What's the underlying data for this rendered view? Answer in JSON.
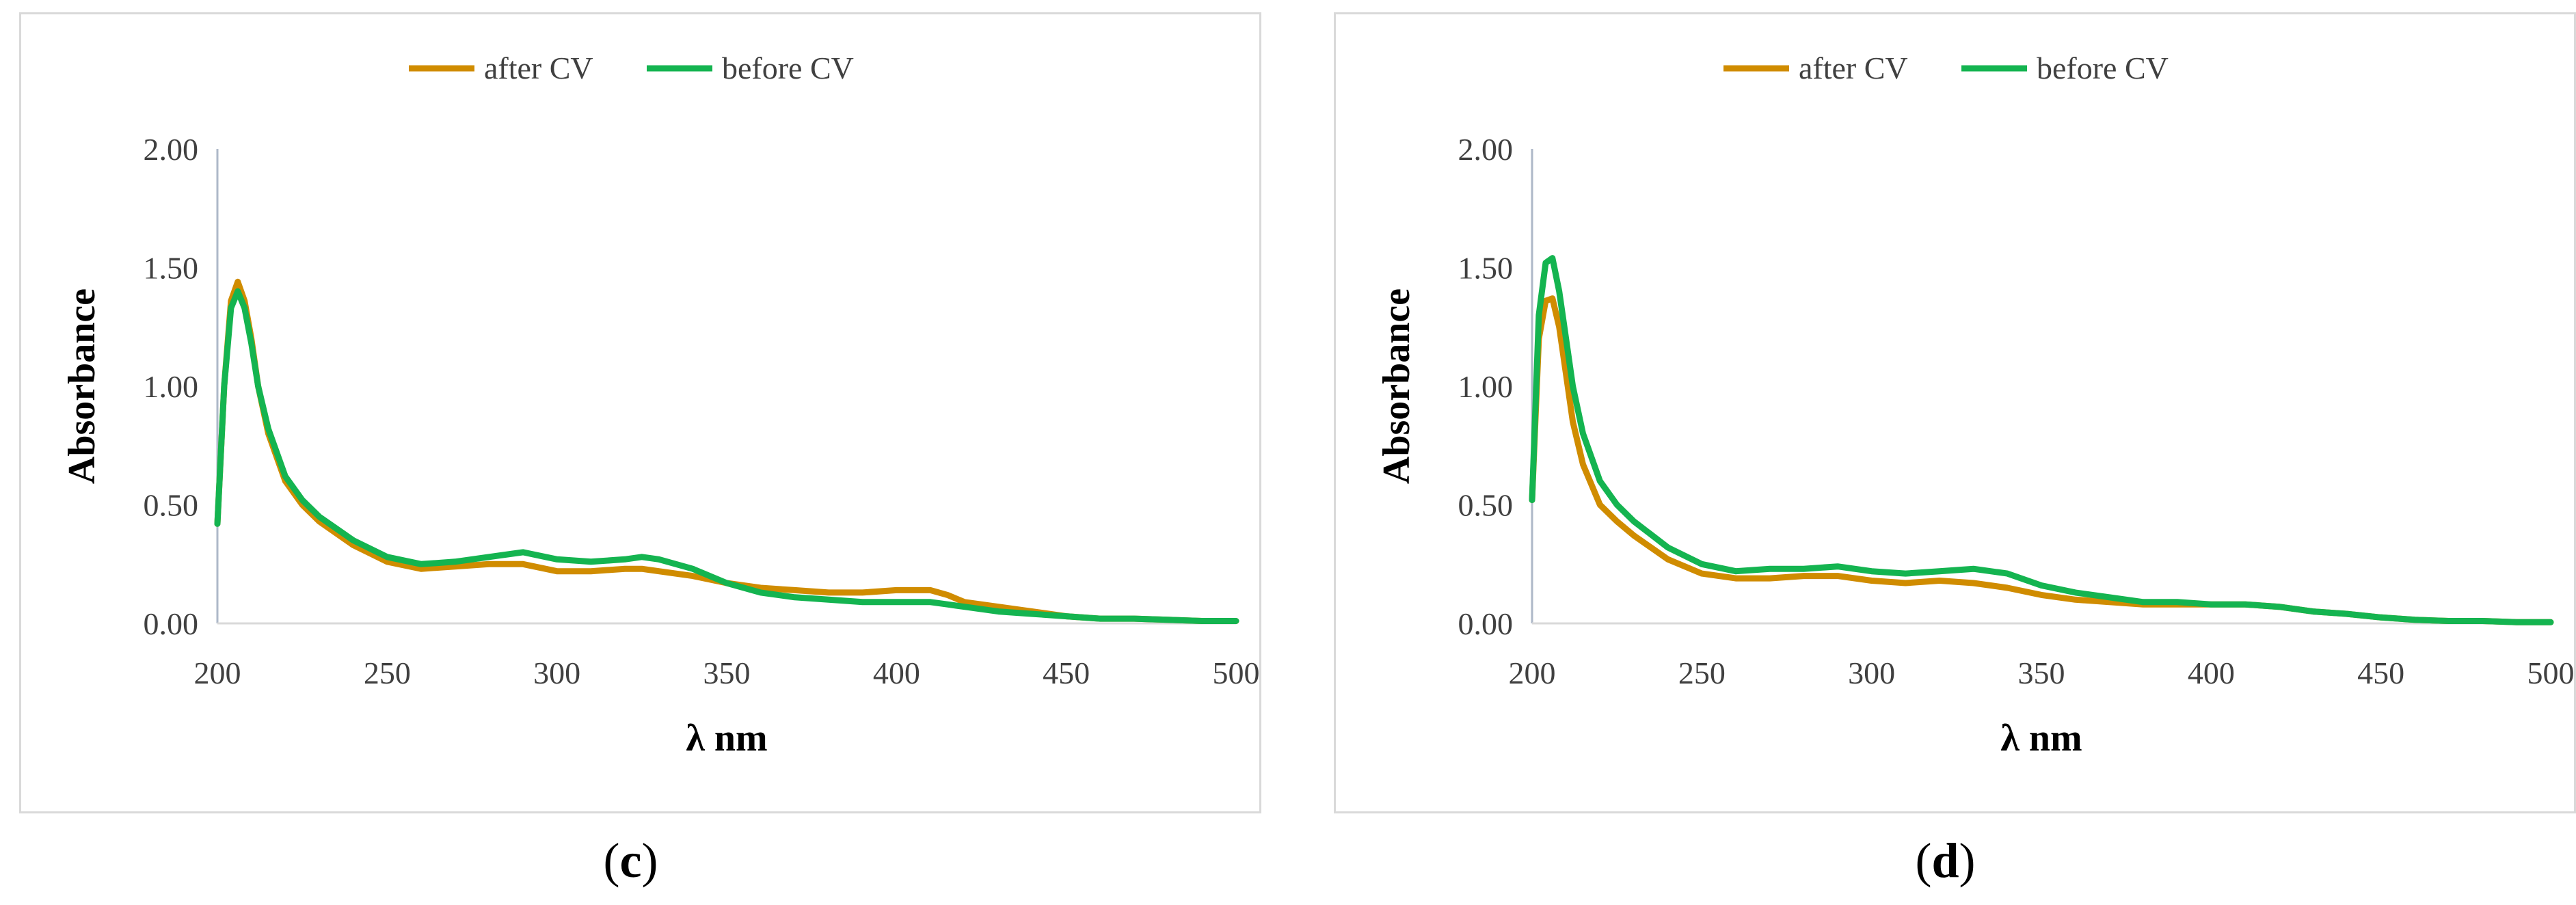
{
  "chart_data": [
    {
      "type": "line",
      "panel_label": "c",
      "title": "",
      "xlabel": "λ nm",
      "ylabel": "Absorbance",
      "xlim": [
        200,
        500
      ],
      "ylim": [
        0,
        2
      ],
      "xticks": [
        200,
        250,
        300,
        350,
        400,
        450,
        500
      ],
      "xtick_labels": [
        "200",
        "250",
        "300",
        "350",
        "400",
        "450",
        "500"
      ],
      "yticks": [
        0,
        0.5,
        1,
        1.5,
        2
      ],
      "ytick_labels": [
        "0.00",
        "0.50",
        "1.00",
        "1.50",
        "2.00"
      ],
      "grid": false,
      "legend_position": "top-center",
      "series": [
        {
          "name": "after CV",
          "color": "#d08c00",
          "x": [
            200,
            202,
            204,
            206,
            208,
            210,
            212,
            215,
            220,
            225,
            230,
            240,
            250,
            260,
            270,
            280,
            290,
            300,
            310,
            320,
            325,
            330,
            340,
            350,
            360,
            370,
            380,
            390,
            400,
            410,
            415,
            420,
            430,
            440,
            450,
            460,
            470,
            480,
            490,
            500
          ],
          "y": [
            0.42,
            1.0,
            1.36,
            1.44,
            1.36,
            1.2,
            1.0,
            0.8,
            0.6,
            0.5,
            0.43,
            0.33,
            0.26,
            0.23,
            0.24,
            0.25,
            0.25,
            0.22,
            0.22,
            0.23,
            0.23,
            0.22,
            0.2,
            0.17,
            0.15,
            0.14,
            0.13,
            0.13,
            0.14,
            0.14,
            0.12,
            0.09,
            0.07,
            0.05,
            0.03,
            0.02,
            0.02,
            0.015,
            0.01,
            0.01
          ]
        },
        {
          "name": "before CV",
          "color": "#14b450",
          "x": [
            200,
            202,
            204,
            206,
            208,
            210,
            212,
            215,
            220,
            225,
            230,
            240,
            250,
            260,
            270,
            280,
            290,
            300,
            310,
            320,
            325,
            330,
            340,
            350,
            360,
            370,
            380,
            390,
            400,
            410,
            415,
            420,
            430,
            440,
            450,
            460,
            470,
            480,
            490,
            500
          ],
          "y": [
            0.42,
            1.0,
            1.33,
            1.4,
            1.33,
            1.18,
            1.0,
            0.82,
            0.62,
            0.52,
            0.45,
            0.35,
            0.28,
            0.25,
            0.26,
            0.28,
            0.3,
            0.27,
            0.26,
            0.27,
            0.28,
            0.27,
            0.23,
            0.17,
            0.13,
            0.11,
            0.1,
            0.09,
            0.09,
            0.09,
            0.08,
            0.07,
            0.05,
            0.04,
            0.03,
            0.02,
            0.02,
            0.015,
            0.01,
            0.01
          ]
        }
      ]
    },
    {
      "type": "line",
      "panel_label": "d",
      "title": "",
      "xlabel": "λ nm",
      "ylabel": "Absorbance",
      "xlim": [
        200,
        500
      ],
      "ylim": [
        0,
        2
      ],
      "xticks": [
        200,
        250,
        300,
        350,
        400,
        450,
        500
      ],
      "xtick_labels": [
        "200",
        "250",
        "300",
        "350",
        "400",
        "450",
        "500"
      ],
      "yticks": [
        0,
        0.5,
        1,
        1.5,
        2
      ],
      "ytick_labels": [
        "0.00",
        "0.50",
        "1.00",
        "1.50",
        "2.00"
      ],
      "grid": false,
      "legend_position": "top-center",
      "series": [
        {
          "name": "after CV",
          "color": "#d08c00",
          "x": [
            200,
            202,
            204,
            206,
            208,
            210,
            212,
            215,
            220,
            225,
            230,
            240,
            250,
            260,
            270,
            280,
            290,
            300,
            310,
            320,
            330,
            340,
            350,
            360,
            370,
            380,
            390,
            400,
            410,
            420,
            430,
            440,
            450,
            460,
            470,
            480,
            490,
            500
          ],
          "y": [
            0.52,
            1.2,
            1.36,
            1.37,
            1.25,
            1.05,
            0.85,
            0.67,
            0.5,
            0.43,
            0.37,
            0.27,
            0.21,
            0.19,
            0.19,
            0.2,
            0.2,
            0.18,
            0.17,
            0.18,
            0.17,
            0.15,
            0.12,
            0.1,
            0.09,
            0.08,
            0.08,
            0.08,
            0.08,
            0.07,
            0.05,
            0.04,
            0.025,
            0.015,
            0.01,
            0.01,
            0.005,
            0.005
          ]
        },
        {
          "name": "before CV",
          "color": "#14b450",
          "x": [
            200,
            202,
            204,
            206,
            208,
            210,
            212,
            215,
            220,
            225,
            230,
            240,
            250,
            260,
            270,
            280,
            290,
            300,
            310,
            320,
            330,
            340,
            350,
            360,
            370,
            380,
            390,
            400,
            410,
            420,
            430,
            440,
            450,
            460,
            470,
            480,
            490,
            500
          ],
          "y": [
            0.52,
            1.3,
            1.52,
            1.54,
            1.4,
            1.2,
            1.0,
            0.8,
            0.6,
            0.5,
            0.43,
            0.32,
            0.25,
            0.22,
            0.23,
            0.23,
            0.24,
            0.22,
            0.21,
            0.22,
            0.23,
            0.21,
            0.16,
            0.13,
            0.11,
            0.09,
            0.09,
            0.08,
            0.08,
            0.07,
            0.05,
            0.04,
            0.025,
            0.015,
            0.01,
            0.01,
            0.005,
            0.005
          ]
        }
      ]
    }
  ]
}
